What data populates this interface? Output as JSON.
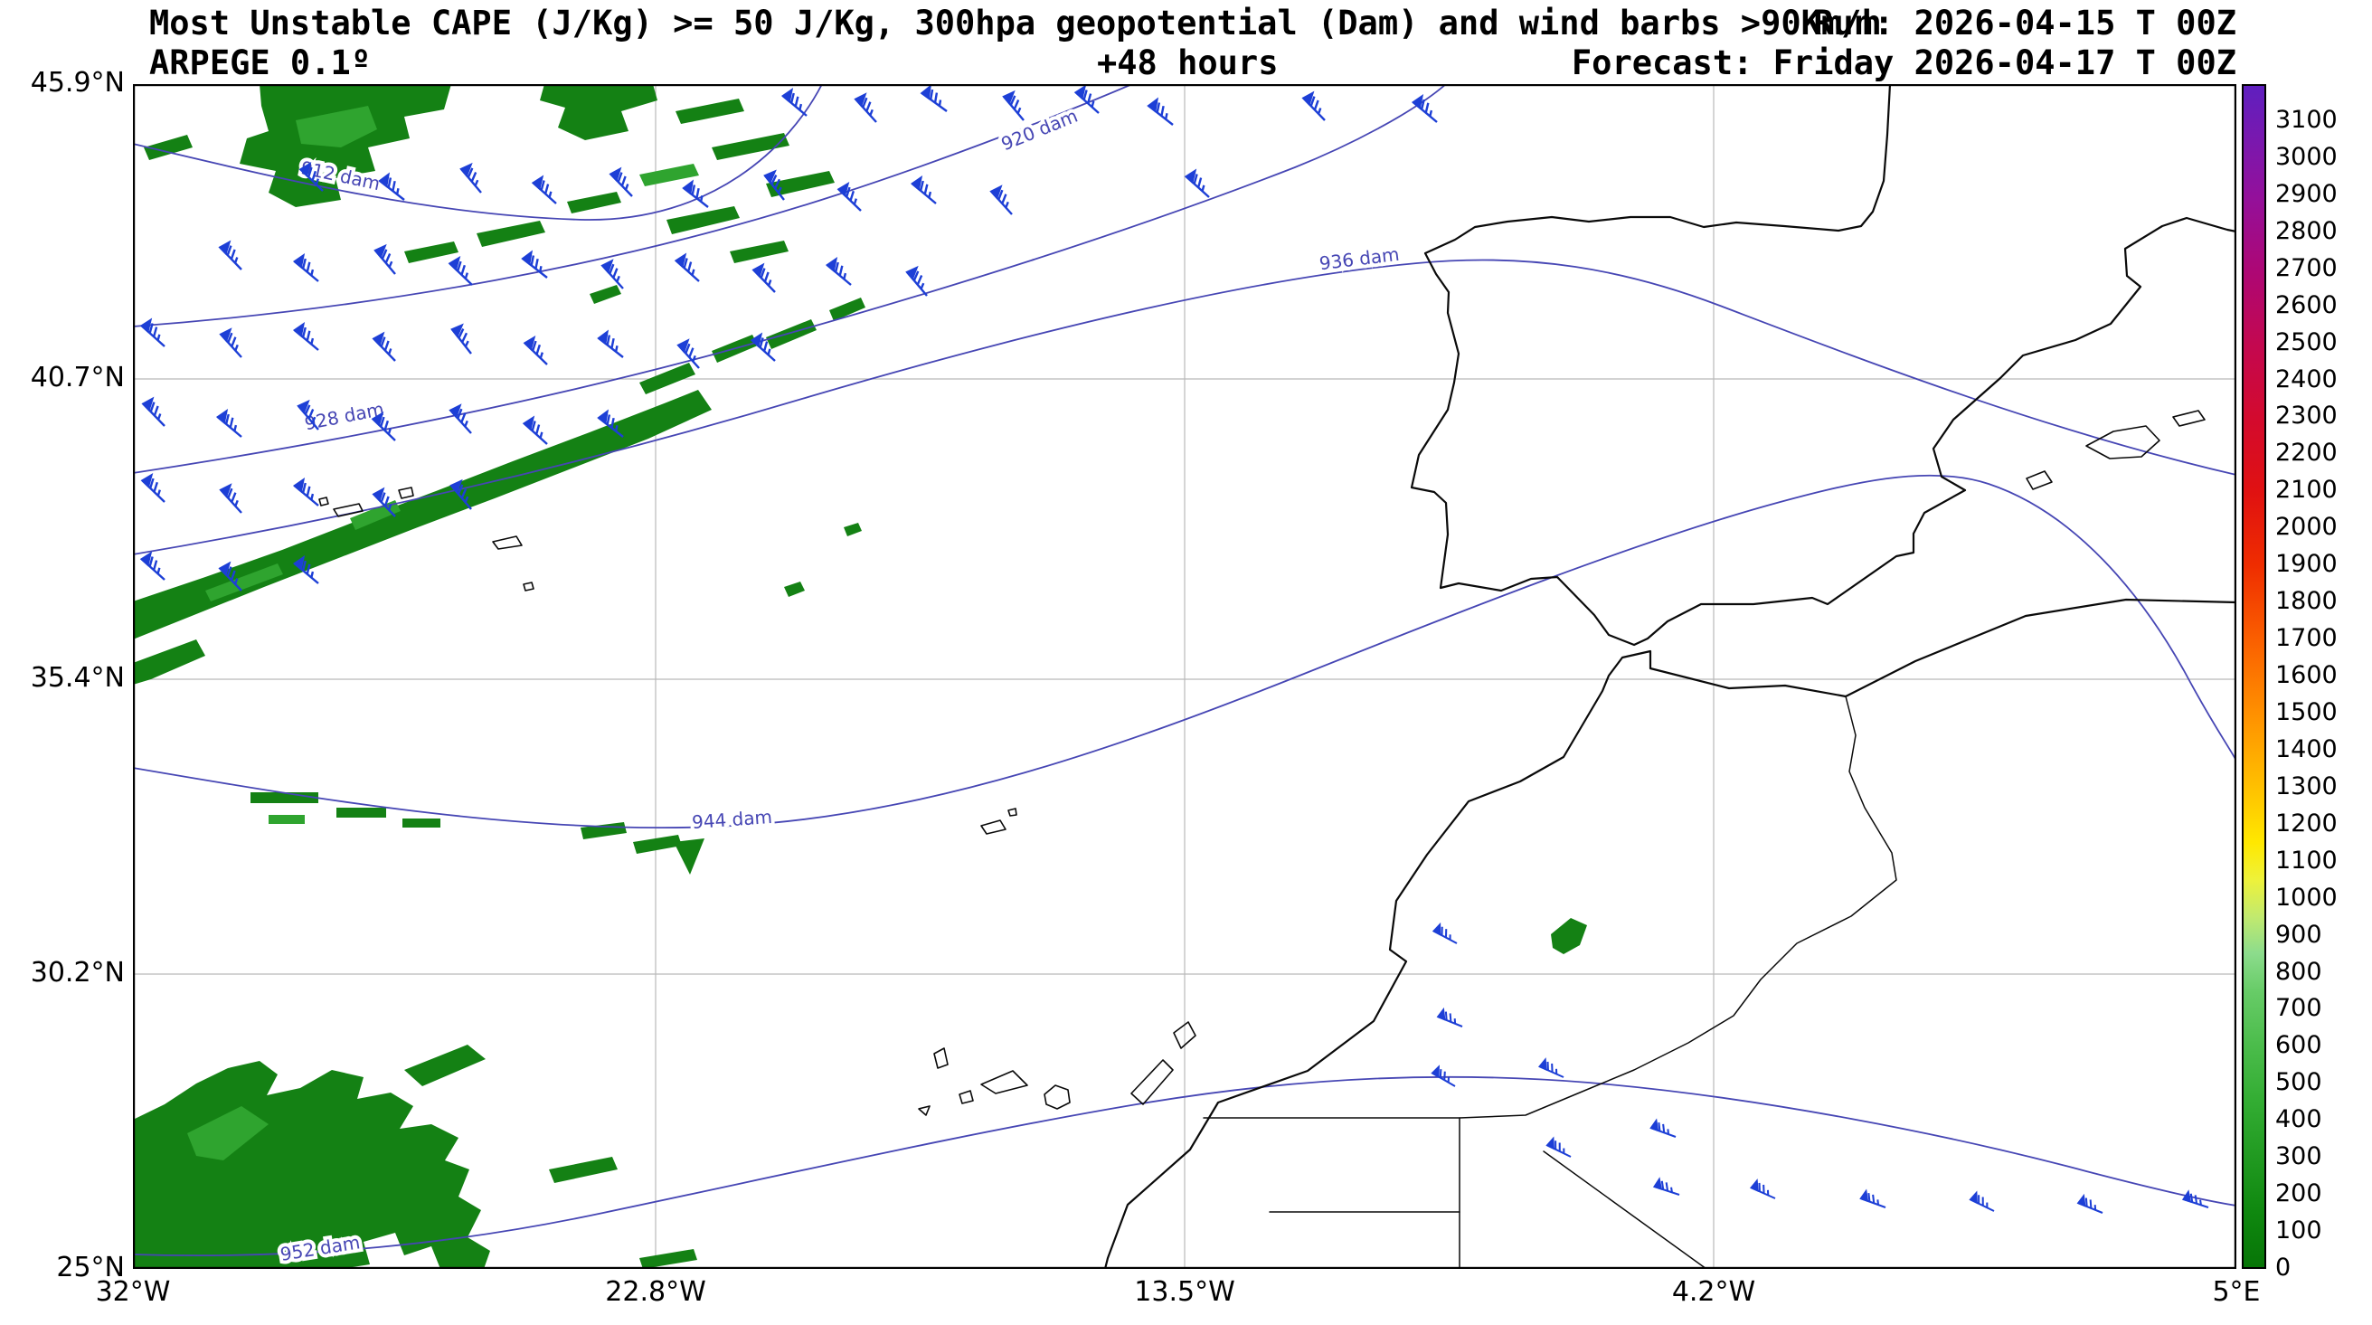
{
  "header": {
    "title": "Most Unstable CAPE (J/Kg) >= 50 J/Kg, 300hpa geopotential (Dam) and wind barbs >90Km/h",
    "run_label": "Run: 2026-04-15 T 00Z",
    "model_label": "ARPEGE 0.1º",
    "lead_label": "+48 hours",
    "forecast_label": "Forecast: Friday 2026-04-17 T 00Z"
  },
  "axes": {
    "lat_ticks": [
      "45.9°N",
      "40.7°N",
      "35.4°N",
      "30.2°N",
      "25°N"
    ],
    "lon_ticks": [
      "32°W",
      "22.8°W",
      "13.5°W",
      "4.2°W",
      "5°E"
    ]
  },
  "contour_labels": [
    {
      "level": 912,
      "label": "912 dam"
    },
    {
      "level": 920,
      "label": "920 dam"
    },
    {
      "level": 928,
      "label": "928 dam"
    },
    {
      "level": 936,
      "label": "936 dam"
    },
    {
      "level": 944,
      "label": "944 dam"
    },
    {
      "level": 952,
      "label": "952 dam"
    }
  ],
  "colorbar": {
    "unit": "J/Kg",
    "value_min": 0,
    "value_max": 3200,
    "ticks": [
      0,
      100,
      200,
      300,
      400,
      500,
      600,
      700,
      800,
      900,
      1000,
      1100,
      1200,
      1300,
      1400,
      1500,
      1600,
      1700,
      1800,
      1900,
      2000,
      2100,
      2200,
      2300,
      2400,
      2500,
      2600,
      2700,
      2800,
      2900,
      3000,
      3100
    ],
    "stops": [
      {
        "v": 0,
        "c": "#077507"
      },
      {
        "v": 150,
        "c": "#0f880f"
      },
      {
        "v": 300,
        "c": "#219a21"
      },
      {
        "v": 450,
        "c": "#33ad33"
      },
      {
        "v": 600,
        "c": "#4bbc4b"
      },
      {
        "v": 750,
        "c": "#68cc68"
      },
      {
        "v": 850,
        "c": "#8cdc8c"
      },
      {
        "v": 950,
        "c": "#c2ea6e"
      },
      {
        "v": 1050,
        "c": "#eef23a"
      },
      {
        "v": 1150,
        "c": "#ffe800"
      },
      {
        "v": 1300,
        "c": "#ffc000"
      },
      {
        "v": 1500,
        "c": "#ff9000"
      },
      {
        "v": 1700,
        "c": "#fa5f00"
      },
      {
        "v": 1900,
        "c": "#ef2d00"
      },
      {
        "v": 2100,
        "c": "#e01111"
      },
      {
        "v": 2300,
        "c": "#d30a2e"
      },
      {
        "v": 2500,
        "c": "#c30850"
      },
      {
        "v": 2700,
        "c": "#ad0775"
      },
      {
        "v": 2900,
        "c": "#93109b"
      },
      {
        "v": 3050,
        "c": "#7a18ae"
      },
      {
        "v": 3200,
        "c": "#5f1fbf"
      }
    ]
  },
  "colors": {
    "cape_fill": "#148114",
    "cape_fill_light": "#2fa42f",
    "contour": "#4646b4",
    "barb": "#1d3fd6",
    "coast": "#0a0a0a",
    "grid": "#b9b9b9"
  },
  "icons": {
    "wind_barb": "wind-barb-icon"
  },
  "chart_data": {
    "type": "heatmap",
    "title": "Most Unstable CAPE (J/Kg) >= 50 J/Kg, 300hpa geopotential (Dam) and wind barbs >90Km/h",
    "model": "ARPEGE 0.1º",
    "run": "2026-04-15 T 00Z",
    "lead_hours": 48,
    "forecast_valid": "Friday 2026-04-17 T 00Z",
    "variable": "Most Unstable CAPE",
    "unit": "J/Kg",
    "shaded_threshold_jkg": 50,
    "map_extent": {
      "lon_min_deg": -32,
      "lon_max_deg": 5,
      "lat_min_deg": 25,
      "lat_max_deg": 45.9
    },
    "lon_tick_labels": [
      "32°W",
      "22.8°W",
      "13.5°W",
      "4.2°W",
      "5°E"
    ],
    "lat_tick_labels": [
      "45.9°N",
      "40.7°N",
      "35.4°N",
      "30.2°N",
      "25°N"
    ],
    "colorbar_range_jkg": [
      0,
      3200
    ],
    "colorbar_tick_step": 100,
    "colorbar_ticks": [
      0,
      100,
      200,
      300,
      400,
      500,
      600,
      700,
      800,
      900,
      1000,
      1100,
      1200,
      1300,
      1400,
      1500,
      1600,
      1700,
      1800,
      1900,
      2000,
      2100,
      2200,
      2300,
      2400,
      2500,
      2600,
      2700,
      2800,
      2900,
      3000,
      3100
    ],
    "geopotential_level_hpa": 300,
    "geopotential_contours_dam": [
      912,
      920,
      928,
      936,
      944,
      952
    ],
    "wind_barb_threshold_kmh": 90,
    "shaded_cape_regions": [
      {
        "area": "North Atlantic north-west sector (top-left of map)",
        "approx_value_jkg": "50-300"
      },
      {
        "area": "SW-NE diagonal band through the Azores toward Madeira",
        "approx_value_jkg": "50-250"
      },
      {
        "area": "South-west corner of map near 25N 28W",
        "approx_value_jkg": "50-300"
      },
      {
        "area": "Small spot over the Moroccan Atlas",
        "approx_value_jkg": "50-150"
      }
    ]
  }
}
